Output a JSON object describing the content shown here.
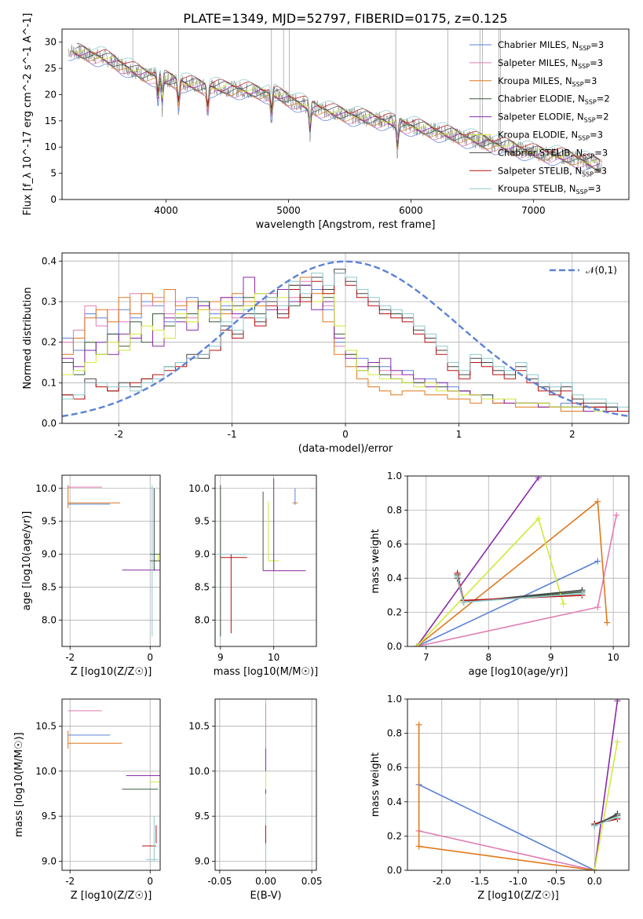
{
  "figure_title": "PLATE=1349, MJD=52797, FIBERID=0175, z=0.125",
  "colors": {
    "Chabrier MILES": "#5b82d6",
    "Salpeter MILES": "#e07db4",
    "Kroupa MILES": "#e0781a",
    "Chabrier ELODIE": "#3b5b3b",
    "Salpeter ELODIE": "#8a2aa8",
    "Kroupa ELODIE": "#d0ea38",
    "Chabrier STELIB": "#444444",
    "Salpeter STELIB": "#b81010",
    "Kroupa STELIB": "#8cc8cc",
    "data": "#888888",
    "gaussian": "#5b82d6"
  },
  "chart_data": [
    {
      "id": "spectrum",
      "type": "line",
      "title": "PLATE=1349, MJD=52797, FIBERID=0175, z=0.125",
      "xlabel": "wavelength [Angstrom, rest frame]",
      "ylabel": "Flux [f_λ 10^-17 erg cm^-2 s^-1 A^-1]",
      "xlim": [
        3150,
        7780
      ],
      "ylim": [
        0,
        32.5
      ],
      "xticks": [
        4000,
        5000,
        6000,
        7000
      ],
      "yticks": [
        0,
        5,
        10,
        15,
        20,
        25,
        30
      ],
      "grid": false,
      "legend_position": "top-right",
      "legend": [
        "Chabrier MILES, N_SSP=3",
        "Salpeter MILES, N_SSP=3",
        "Kroupa MILES, N_SSP=3",
        "Chabrier ELODIE, N_SSP=2",
        "Salpeter ELODIE, N_SSP=2",
        "Kroupa ELODIE, N_SSP=3",
        "Chabrier STELIB, N_SSP=3",
        "Salpeter STELIB, N_SSP=3",
        "Kroupa STELIB, N_SSP=3"
      ],
      "continuum": {
        "x": [
          3200,
          3500,
          3800,
          4000,
          4300,
          4600,
          4900,
          5200,
          5500,
          5800,
          6100,
          6400,
          6700,
          7000,
          7300,
          7550
        ],
        "y": [
          28.5,
          27,
          24,
          23,
          21.5,
          21,
          20,
          17.5,
          16,
          15,
          13.5,
          12,
          10.5,
          9,
          8,
          6.5
        ]
      }
    },
    {
      "id": "residuals",
      "type": "line",
      "xlabel": "(data-model)/error",
      "ylabel": "Normed distribution",
      "xlim": [
        -2.5,
        2.5
      ],
      "ylim": [
        0,
        0.42
      ],
      "xticks": [
        -2,
        -1,
        0,
        1,
        2
      ],
      "yticks": [
        0.0,
        0.1,
        0.2,
        0.3,
        0.4
      ],
      "grid": true,
      "legend_position": "top-right",
      "legend": [
        "𝒩(0,1)"
      ],
      "series": [
        {
          "name": "Chabrier MILES",
          "y": [
            0.21,
            0.18,
            0.27,
            0.26,
            0.22,
            0.28,
            0.26,
            0.3,
            0.29,
            0.25,
            0.28,
            0.31,
            0.3,
            0.27,
            0.29,
            0.31,
            0.28,
            0.32,
            0.3,
            0.28,
            0.33,
            0.34,
            0.33,
            0.28,
            0.2,
            0.18,
            0.16,
            0.15,
            0.14,
            0.12,
            0.13,
            0.1,
            0.11,
            0.1,
            0.09,
            0.08,
            0.07,
            0.07,
            0.05,
            0.06,
            0.05,
            0.05,
            0.04,
            0.04,
            0.05,
            0.04,
            0.03,
            0.04,
            0.04,
            0.03
          ]
        },
        {
          "name": "Salpeter MILES",
          "y": [
            0.2,
            0.23,
            0.29,
            0.24,
            0.28,
            0.25,
            0.32,
            0.29,
            0.31,
            0.27,
            0.3,
            0.26,
            0.29,
            0.28,
            0.31,
            0.26,
            0.29,
            0.3,
            0.32,
            0.28,
            0.31,
            0.35,
            0.3,
            0.29,
            0.19,
            0.17,
            0.14,
            0.15,
            0.13,
            0.12,
            0.12,
            0.1,
            0.1,
            0.09,
            0.08,
            0.08,
            0.07,
            0.06,
            0.05,
            0.06,
            0.05,
            0.05,
            0.05,
            0.04,
            0.04,
            0.04,
            0.03,
            0.04,
            0.03,
            0.03
          ]
        },
        {
          "name": "Kroupa MILES",
          "y": [
            0.17,
            0.21,
            0.26,
            0.28,
            0.25,
            0.31,
            0.27,
            0.32,
            0.3,
            0.33,
            0.29,
            0.3,
            0.28,
            0.3,
            0.27,
            0.32,
            0.3,
            0.29,
            0.31,
            0.27,
            0.34,
            0.36,
            0.32,
            0.25,
            0.17,
            0.14,
            0.11,
            0.09,
            0.08,
            0.07,
            0.08,
            0.08,
            0.07,
            0.07,
            0.06,
            0.06,
            0.05,
            0.06,
            0.05,
            0.05,
            0.04,
            0.04,
            0.04,
            0.04,
            0.03,
            0.03,
            0.03,
            0.04,
            0.03,
            0.03
          ]
        },
        {
          "name": "Chabrier ELODIE",
          "y": [
            0.15,
            0.12,
            0.2,
            0.17,
            0.22,
            0.19,
            0.25,
            0.2,
            0.27,
            0.24,
            0.26,
            0.27,
            0.3,
            0.25,
            0.28,
            0.29,
            0.31,
            0.27,
            0.3,
            0.33,
            0.29,
            0.34,
            0.3,
            0.31,
            0.22,
            0.17,
            0.13,
            0.14,
            0.12,
            0.11,
            0.1,
            0.1,
            0.09,
            0.09,
            0.08,
            0.08,
            0.07,
            0.07,
            0.06,
            0.06,
            0.05,
            0.05,
            0.05,
            0.04,
            0.04,
            0.04,
            0.04,
            0.03,
            0.04,
            0.03
          ]
        },
        {
          "name": "Salpeter ELODIE",
          "y": [
            0.16,
            0.14,
            0.18,
            0.2,
            0.17,
            0.22,
            0.21,
            0.24,
            0.19,
            0.26,
            0.25,
            0.23,
            0.29,
            0.26,
            0.31,
            0.27,
            0.36,
            0.3,
            0.28,
            0.33,
            0.3,
            0.34,
            0.28,
            0.3,
            0.21,
            0.16,
            0.14,
            0.15,
            0.16,
            0.13,
            0.12,
            0.11,
            0.09,
            0.1,
            0.08,
            0.08,
            0.07,
            0.06,
            0.06,
            0.05,
            0.05,
            0.05,
            0.04,
            0.04,
            0.04,
            0.04,
            0.03,
            0.04,
            0.03,
            0.03
          ]
        },
        {
          "name": "Kroupa ELODIE",
          "y": [
            0.12,
            0.13,
            0.15,
            0.17,
            0.2,
            0.18,
            0.22,
            0.24,
            0.23,
            0.21,
            0.27,
            0.25,
            0.28,
            0.26,
            0.3,
            0.28,
            0.29,
            0.32,
            0.3,
            0.31,
            0.33,
            0.31,
            0.3,
            0.32,
            0.24,
            0.18,
            0.13,
            0.12,
            0.11,
            0.11,
            0.1,
            0.09,
            0.1,
            0.08,
            0.08,
            0.07,
            0.07,
            0.06,
            0.06,
            0.06,
            0.05,
            0.05,
            0.05,
            0.04,
            0.04,
            0.04,
            0.04,
            0.03,
            0.03,
            0.03
          ]
        },
        {
          "name": "Chabrier STELIB",
          "y": [
            0.07,
            0.06,
            0.11,
            0.09,
            0.08,
            0.1,
            0.09,
            0.11,
            0.12,
            0.14,
            0.15,
            0.17,
            0.16,
            0.18,
            0.24,
            0.22,
            0.27,
            0.25,
            0.3,
            0.27,
            0.34,
            0.31,
            0.36,
            0.33,
            0.38,
            0.35,
            0.32,
            0.3,
            0.28,
            0.27,
            0.26,
            0.23,
            0.21,
            0.18,
            0.14,
            0.12,
            0.16,
            0.15,
            0.13,
            0.12,
            0.14,
            0.11,
            0.09,
            0.08,
            0.09,
            0.06,
            0.05,
            0.05,
            0.04,
            0.03
          ]
        },
        {
          "name": "Salpeter STELIB",
          "y": [
            0.07,
            0.06,
            0.1,
            0.09,
            0.08,
            0.09,
            0.1,
            0.11,
            0.12,
            0.13,
            0.14,
            0.16,
            0.17,
            0.18,
            0.23,
            0.21,
            0.26,
            0.24,
            0.29,
            0.26,
            0.33,
            0.3,
            0.35,
            0.32,
            0.37,
            0.34,
            0.31,
            0.29,
            0.27,
            0.26,
            0.25,
            0.22,
            0.2,
            0.17,
            0.13,
            0.11,
            0.15,
            0.14,
            0.12,
            0.11,
            0.13,
            0.1,
            0.08,
            0.07,
            0.08,
            0.05,
            0.04,
            0.04,
            0.03,
            0.03
          ]
        },
        {
          "name": "Kroupa STELIB",
          "y": [
            0.06,
            0.07,
            0.1,
            0.1,
            0.09,
            0.09,
            0.08,
            0.1,
            0.11,
            0.14,
            0.15,
            0.16,
            0.17,
            0.19,
            0.25,
            0.23,
            0.28,
            0.26,
            0.31,
            0.29,
            0.35,
            0.32,
            0.37,
            0.34,
            0.37,
            0.36,
            0.33,
            0.31,
            0.29,
            0.28,
            0.27,
            0.24,
            0.22,
            0.19,
            0.15,
            0.13,
            0.17,
            0.16,
            0.14,
            0.13,
            0.15,
            0.12,
            0.1,
            0.09,
            0.1,
            0.07,
            0.06,
            0.06,
            0.05,
            0.04
          ]
        }
      ],
      "bin_edges": {
        "start": -2.5,
        "width": 0.1
      }
    },
    {
      "id": "Z-age",
      "type": "scatter",
      "xlabel": "Z [log10(Z/Z☉)]",
      "ylabel": "age  [log10(age/yr)]",
      "xlim": [
        -2.2,
        0.25
      ],
      "ylim": [
        7.6,
        10.2
      ],
      "xticks": [
        -2,
        0
      ],
      "yticks": [
        8.0,
        8.5,
        9.0,
        9.5,
        10.0
      ],
      "grid": true
    },
    {
      "id": "mass-age",
      "type": "scatter",
      "xlabel": "mass [log10(M/M☉)]",
      "ylabel": "",
      "xlim": [
        8.9,
        10.8
      ],
      "ylim": [
        7.6,
        10.2
      ],
      "xticks": [
        9,
        10
      ],
      "yticks": [
        8.0,
        8.5,
        9.0,
        9.5,
        10.0
      ],
      "grid": true
    },
    {
      "id": "age-weight",
      "type": "line",
      "xlabel": "age  [log10(age/yr)]",
      "ylabel": "mass weight",
      "xlim": [
        6.7,
        10.25
      ],
      "ylim": [
        0,
        1.0
      ],
      "xticks": [
        7,
        8,
        9,
        10
      ],
      "yticks": [
        0.0,
        0.2,
        0.4,
        0.6,
        0.8,
        1.0
      ],
      "grid": true,
      "series": [
        {
          "name": "Chabrier MILES",
          "x": [
            6.85,
            9.75
          ],
          "y": [
            0.0,
            0.5
          ]
        },
        {
          "name": "Salpeter MILES",
          "x": [
            6.85,
            9.75,
            10.05
          ],
          "y": [
            0.0,
            0.23,
            0.77
          ]
        },
        {
          "name": "Kroupa MILES",
          "x": [
            6.85,
            9.75,
            9.9
          ],
          "y": [
            0.0,
            0.85,
            0.14
          ]
        },
        {
          "name": "Chabrier ELODIE",
          "x": [
            7.5,
            7.6,
            9.5
          ],
          "y": [
            0.42,
            0.26,
            0.32
          ]
        },
        {
          "name": "Salpeter ELODIE",
          "x": [
            6.85,
            8.8
          ],
          "y": [
            0.0,
            0.99
          ]
        },
        {
          "name": "Kroupa ELODIE",
          "x": [
            6.85,
            8.8,
            9.2
          ],
          "y": [
            0.0,
            0.75,
            0.25
          ]
        },
        {
          "name": "Chabrier STELIB",
          "x": [
            7.5,
            7.6,
            9.5
          ],
          "y": [
            0.4,
            0.26,
            0.33
          ]
        },
        {
          "name": "Salpeter STELIB",
          "x": [
            7.5,
            7.6,
            9.5
          ],
          "y": [
            0.43,
            0.27,
            0.3
          ]
        },
        {
          "name": "Kroupa STELIB",
          "x": [
            7.5,
            7.6,
            9.5
          ],
          "y": [
            0.41,
            0.26,
            0.31
          ]
        }
      ]
    },
    {
      "id": "Z-mass",
      "type": "scatter",
      "xlabel": "Z [log10(Z/Z☉)]",
      "ylabel": "mass [log10(M/M☉)]",
      "xlim": [
        -2.2,
        0.25
      ],
      "ylim": [
        8.9,
        10.8
      ],
      "xticks": [
        -2,
        0
      ],
      "yticks": [
        9.0,
        9.5,
        10.0,
        10.5
      ],
      "grid": true
    },
    {
      "id": "EBV-mass",
      "type": "scatter",
      "xlabel": "E(B-V)",
      "ylabel": "",
      "xlim": [
        -0.055,
        0.055
      ],
      "ylim": [
        8.9,
        10.8
      ],
      "xticks": [
        -0.05,
        0.0,
        0.05
      ],
      "yticks": [
        9.0,
        9.5,
        10.0,
        10.5
      ],
      "grid": true
    },
    {
      "id": "Z-weight",
      "type": "line",
      "xlabel": "Z [log10(Z/Z☉)]",
      "ylabel": "mass weight",
      "xlim": [
        -2.45,
        0.45
      ],
      "ylim": [
        0,
        1.0
      ],
      "xticks": [
        -2.0,
        -1.5,
        -1.0,
        -0.5,
        0.0
      ],
      "yticks": [
        0.0,
        0.2,
        0.4,
        0.6,
        0.8,
        1.0
      ],
      "grid": true,
      "series": [
        {
          "name": "Chabrier MILES",
          "x": [
            -2.3,
            0.0
          ],
          "y": [
            0.5,
            0.0
          ]
        },
        {
          "name": "Salpeter MILES",
          "x": [
            -2.3,
            0.0
          ],
          "y": [
            0.23,
            0.0
          ]
        },
        {
          "name": "Kroupa MILES",
          "x": [
            -2.3,
            -2.3,
            0.0
          ],
          "y": [
            0.85,
            0.14,
            0.0
          ]
        },
        {
          "name": "Chabrier ELODIE",
          "x": [
            0.0,
            0.3
          ],
          "y": [
            0.27,
            0.32
          ]
        },
        {
          "name": "Salpeter ELODIE",
          "x": [
            0.0,
            0.3
          ],
          "y": [
            0.0,
            0.99
          ]
        },
        {
          "name": "Kroupa ELODIE",
          "x": [
            0.0,
            0.3
          ],
          "y": [
            0.0,
            0.75
          ]
        },
        {
          "name": "Chabrier STELIB",
          "x": [
            0.0,
            0.3
          ],
          "y": [
            0.26,
            0.33
          ]
        },
        {
          "name": "Salpeter STELIB",
          "x": [
            0.0,
            0.3
          ],
          "y": [
            0.27,
            0.3
          ]
        },
        {
          "name": "Kroupa STELIB",
          "x": [
            0.0,
            0.3
          ],
          "y": [
            0.26,
            0.31
          ]
        }
      ]
    }
  ]
}
